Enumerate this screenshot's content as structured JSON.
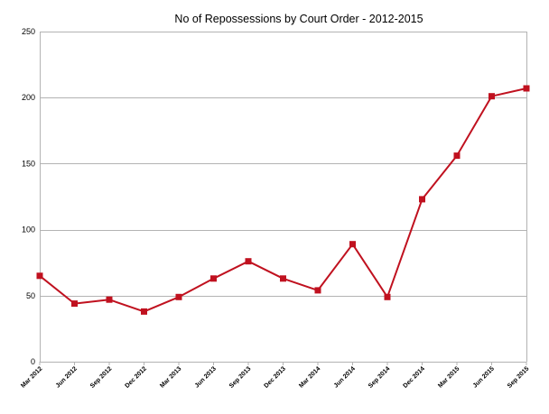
{
  "chart_data": {
    "type": "line",
    "title": "No of Repossessions by Court Order - 2012-2015",
    "xlabel": "",
    "ylabel": "",
    "categories": [
      "Mar 2012",
      "Jun 2012",
      "Sep 2012",
      "Dec 2012",
      "Mar 2013",
      "Jun 2013",
      "Sep 2013",
      "Dec 2013",
      "Mar 2014",
      "Jun 2014",
      "Sep 2014",
      "Dec 2014",
      "Mar 2015",
      "Jun 2015",
      "Sep 2015"
    ],
    "series": [
      {
        "values": [
          65,
          44,
          47,
          38,
          49,
          63,
          76,
          63,
          54,
          89,
          49,
          123,
          156,
          201,
          207
        ],
        "color": "#c0111f"
      }
    ],
    "ylim": [
      0,
      250
    ],
    "yticks": [
      0,
      50,
      100,
      150,
      200,
      250
    ],
    "grid": "horizontal",
    "legend": "none"
  }
}
